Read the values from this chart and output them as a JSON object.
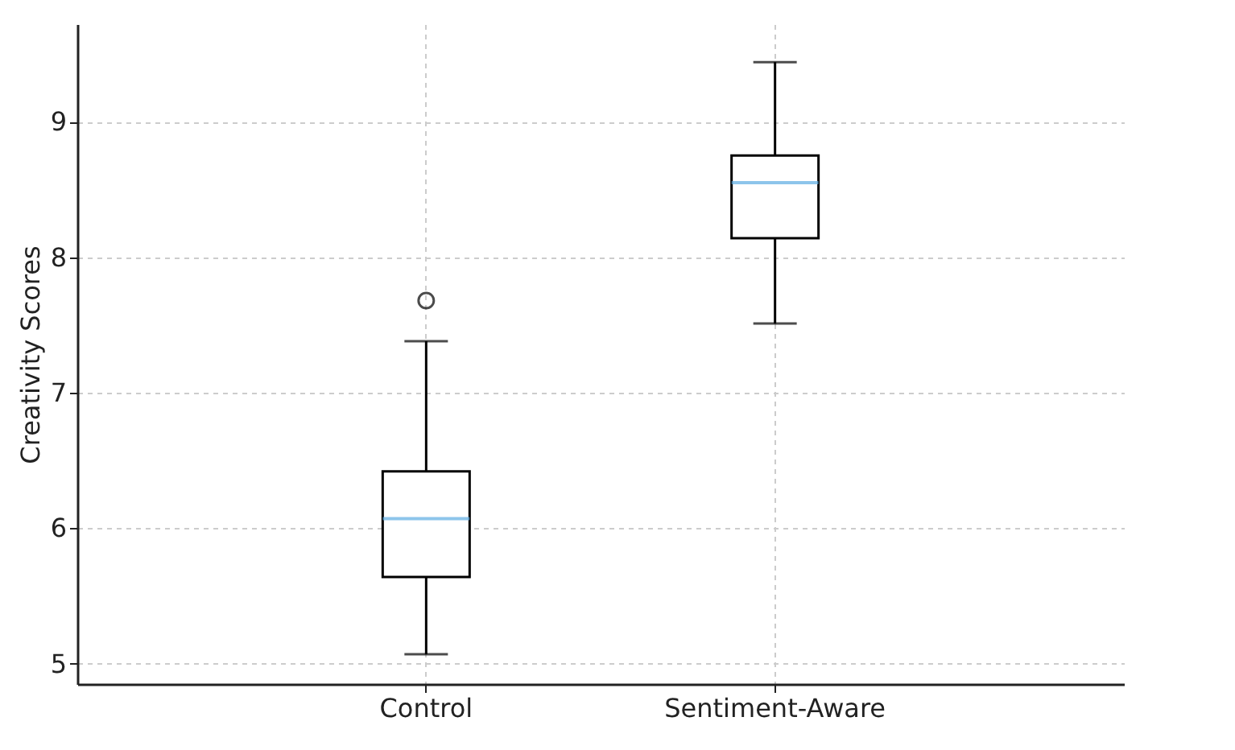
{
  "chart_data": {
    "type": "box",
    "ylabel": "Creativity Scores",
    "categories": [
      "Control",
      "Sentiment-Aware"
    ],
    "boxes": [
      {
        "low": 5.07,
        "q1": 5.64,
        "median": 6.07,
        "q3": 6.42,
        "high": 7.38,
        "outliers": [
          7.68
        ]
      },
      {
        "low": 7.51,
        "q1": 8.14,
        "median": 8.55,
        "q3": 8.75,
        "high": 9.44
      }
    ],
    "ylim": [
      4.85,
      9.72
    ],
    "yticks": [
      5,
      6,
      7,
      8,
      9
    ],
    "grid": true
  }
}
